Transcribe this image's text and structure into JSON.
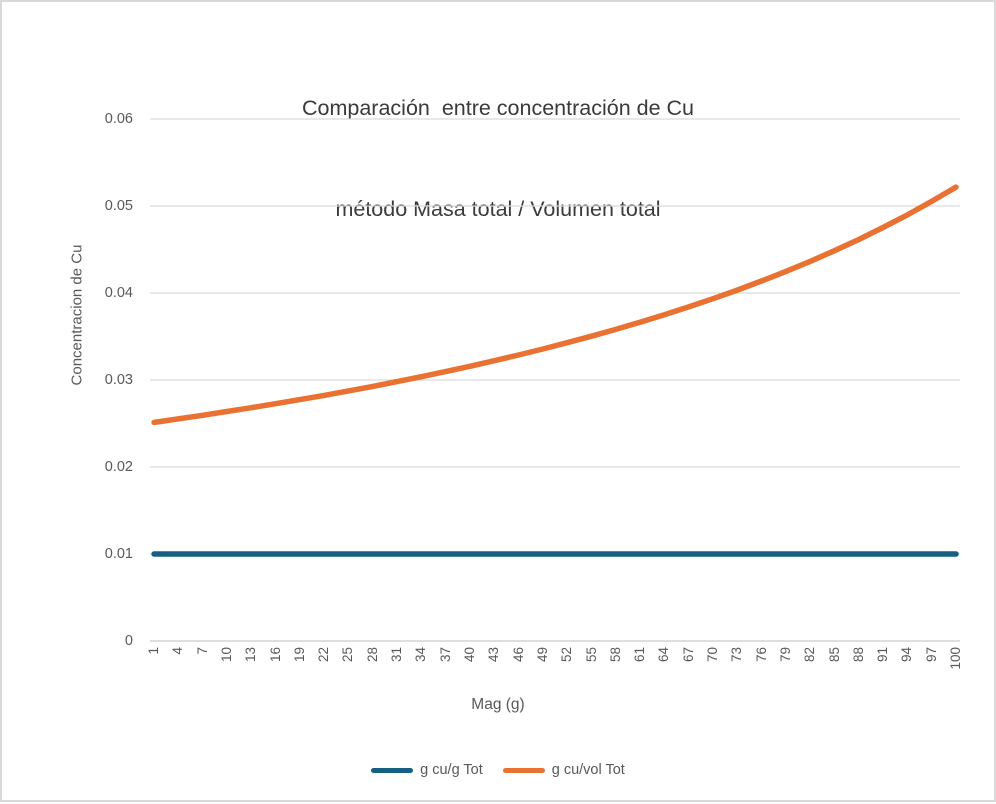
{
  "title": {
    "line1": "Comparación  entre concentración de Cu",
    "line2": "método Masa total / Volumen total"
  },
  "axes": {
    "y_title": "Concentracion de Cu",
    "x_title": "Mag (g)",
    "y_tick_labels": [
      "0",
      "0.01",
      "0.02",
      "0.03",
      "0.04",
      "0.05",
      "0.06"
    ]
  },
  "legend": {
    "items": [
      {
        "label": "g cu/g Tot",
        "color": "#156082"
      },
      {
        "label": "g cu/vol Tot",
        "color": "#E97132"
      }
    ]
  },
  "colors": {
    "series_blue": "#156082",
    "series_orange": "#E97132",
    "gridline": "#d9d9d9",
    "axis_line": "#c9c9c9",
    "text_gray": "#595959",
    "title_gray": "#3a3a3a",
    "border": "#d9d9d9"
  },
  "chart_data": {
    "type": "line",
    "title": "Comparación entre concentración de Cu método Masa total / Volumen total",
    "xlabel": "Mag (g)",
    "ylabel": "Concentracion de Cu",
    "ylim": [
      0,
      0.06
    ],
    "y_ticks": [
      0,
      0.01,
      0.02,
      0.03,
      0.04,
      0.05,
      0.06
    ],
    "grid": true,
    "legend_position": "bottom",
    "x": [
      1,
      4,
      7,
      10,
      13,
      16,
      19,
      22,
      25,
      28,
      31,
      34,
      37,
      40,
      43,
      46,
      49,
      52,
      55,
      58,
      61,
      64,
      67,
      70,
      73,
      76,
      79,
      82,
      85,
      88,
      91,
      94,
      97,
      100
    ],
    "series": [
      {
        "name": "g cu/g Tot",
        "color": "#156082",
        "values": [
          0.01,
          0.01,
          0.01,
          0.01,
          0.01,
          0.01,
          0.01,
          0.01,
          0.01,
          0.01,
          0.01,
          0.01,
          0.01,
          0.01,
          0.01,
          0.01,
          0.01,
          0.01,
          0.01,
          0.01,
          0.01,
          0.01,
          0.01,
          0.01,
          0.01,
          0.01,
          0.01,
          0.01,
          0.01,
          0.01,
          0.01,
          0.01,
          0.01,
          0.01
        ]
      },
      {
        "name": "g cu/vol Tot",
        "color": "#E97132",
        "values": [
          0.025131,
          0.025532,
          0.025946,
          0.026374,
          0.026816,
          0.027273,
          0.027746,
          0.028235,
          0.028743,
          0.029268,
          0.029814,
          0.03038,
          0.030968,
          0.031579,
          0.032215,
          0.032877,
          0.033566,
          0.034286,
          0.035036,
          0.035821,
          0.036641,
          0.0375,
          0.0384,
          0.039344,
          0.040336,
          0.041379,
          0.042478,
          0.043636,
          0.04486,
          0.046154,
          0.047525,
          0.04898,
          0.050526,
          0.052174
        ]
      }
    ]
  }
}
